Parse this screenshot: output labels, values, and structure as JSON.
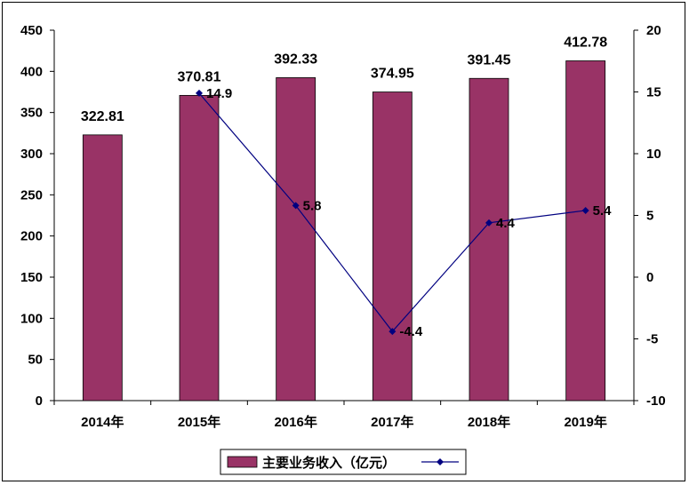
{
  "chart_data": {
    "type": "bar",
    "categories": [
      "2014年",
      "2015年",
      "2016年",
      "2017年",
      "2018年",
      "2019年"
    ],
    "series": [
      {
        "name": "主要业务收入（亿元）",
        "type": "bar",
        "axis": "left",
        "values": [
          322.81,
          370.81,
          392.33,
          374.95,
          391.45,
          412.78
        ],
        "labels": [
          "322.81",
          "370.81",
          "392.33",
          "374.95",
          "391.45",
          "412.78"
        ],
        "color": "#993366"
      },
      {
        "type": "line",
        "axis": "right",
        "values": [
          null,
          14.9,
          5.8,
          -4.4,
          4.4,
          5.4
        ],
        "labels": [
          "",
          "14.9",
          "5.8",
          "-4.4",
          "4.4",
          "5.4"
        ],
        "color": "#000080"
      }
    ],
    "y_left": {
      "min": 0,
      "max": 450,
      "step": 50,
      "ticks": [
        "0",
        "50",
        "100",
        "150",
        "200",
        "250",
        "300",
        "350",
        "400",
        "450"
      ]
    },
    "y_right": {
      "min": -10,
      "max": 20,
      "step": 5,
      "ticks": [
        "-10",
        "-5",
        "0",
        "5",
        "10",
        "15",
        "20"
      ]
    },
    "grid": false,
    "legend_position": "bottom"
  }
}
